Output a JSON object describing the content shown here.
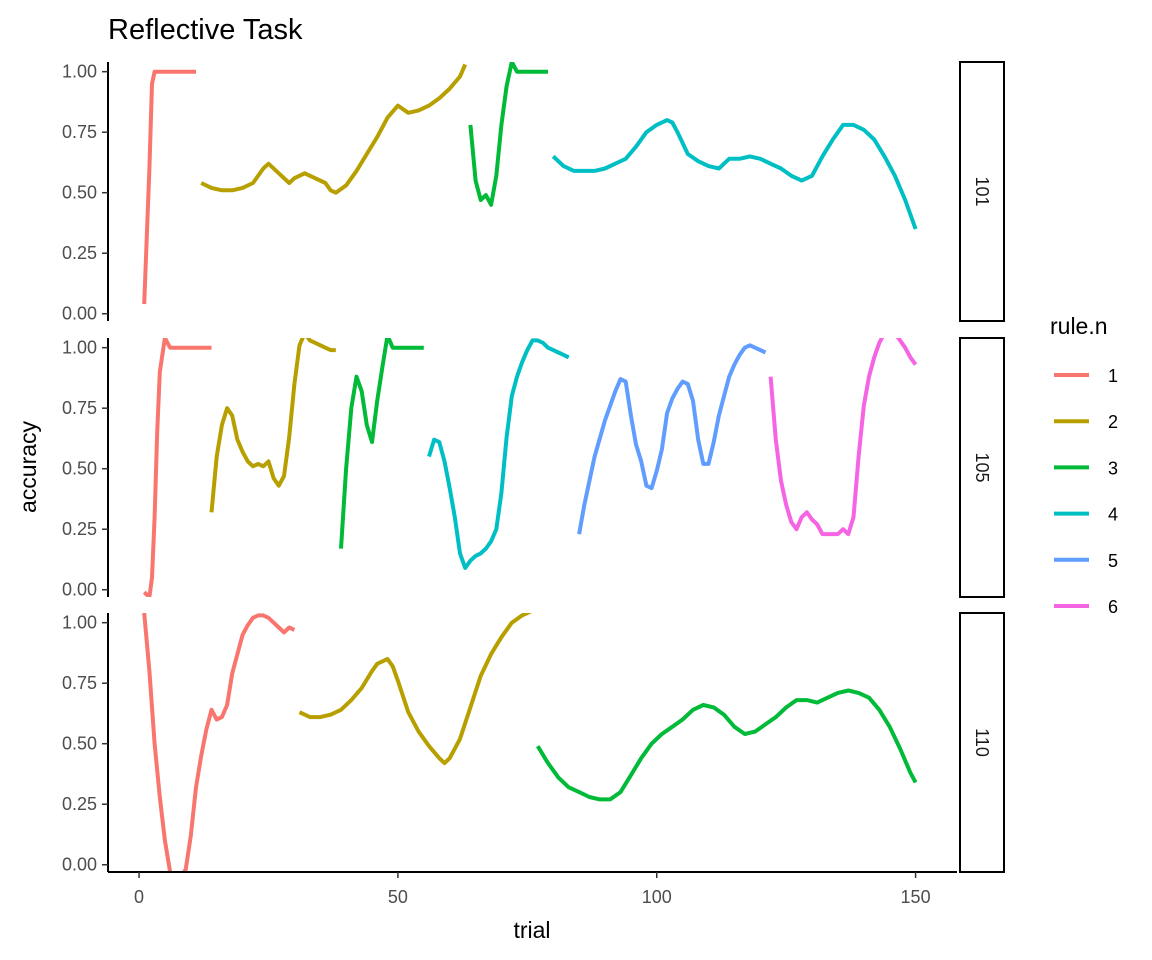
{
  "chart_data": {
    "type": "line",
    "title": "Reflective Task",
    "xlabel": "trial",
    "ylabel": "accuracy",
    "xlim": [
      -6,
      158
    ],
    "ylim": [
      -0.03,
      1.04
    ],
    "x_ticks": [
      0,
      50,
      100,
      150
    ],
    "y_ticks": [
      0,
      0.25,
      0.5,
      0.75,
      1.0
    ],
    "y_tick_labels": [
      "0.00",
      "0.25",
      "0.50",
      "0.75",
      "1.00"
    ],
    "grid": false,
    "legend": {
      "title": "rule.n",
      "position": "right",
      "entries": [
        {
          "label": "1",
          "color": "#F8766D"
        },
        {
          "label": "2",
          "color": "#B79F00"
        },
        {
          "label": "3",
          "color": "#00BA38"
        },
        {
          "label": "4",
          "color": "#00BFC4"
        },
        {
          "label": "5",
          "color": "#619CFF"
        },
        {
          "label": "6",
          "color": "#F564E3"
        }
      ]
    },
    "panels": [
      {
        "label": "101",
        "series": [
          {
            "rule": 1,
            "x": [
              1,
              2,
              2.5,
              3,
              4,
              6,
              8,
              11
            ],
            "y": [
              0.04,
              0.6,
              0.95,
              1.0,
              1.0,
              1.0,
              1.0,
              1.0
            ]
          },
          {
            "rule": 2,
            "x": [
              12,
              14,
              16,
              18,
              20,
              22,
              24,
              25,
              27,
              29,
              30,
              32,
              34,
              36,
              37,
              38,
              40,
              42,
              44,
              46,
              48,
              50,
              52,
              54,
              56,
              58,
              60,
              62,
              63
            ],
            "y": [
              0.54,
              0.52,
              0.51,
              0.51,
              0.52,
              0.54,
              0.6,
              0.62,
              0.58,
              0.54,
              0.56,
              0.58,
              0.56,
              0.54,
              0.51,
              0.5,
              0.53,
              0.59,
              0.66,
              0.73,
              0.81,
              0.86,
              0.83,
              0.84,
              0.86,
              0.89,
              0.93,
              0.98,
              1.03
            ]
          },
          {
            "rule": 3,
            "x": [
              64,
              65,
              66,
              67,
              68,
              69,
              70,
              71,
              72,
              73,
              75,
              78,
              79
            ],
            "y": [
              0.78,
              0.55,
              0.47,
              0.49,
              0.45,
              0.57,
              0.78,
              0.94,
              1.04,
              1.0,
              1.0,
              1.0,
              1.0
            ]
          },
          {
            "rule": 4,
            "x": [
              80,
              82,
              84,
              86,
              88,
              90,
              92,
              94,
              96,
              98,
              100,
              102,
              103,
              104,
              106,
              108,
              110,
              112,
              114,
              116,
              118,
              120,
              122,
              124,
              126,
              128,
              130,
              132,
              134,
              136,
              138,
              140,
              142,
              144,
              146,
              148,
              150
            ],
            "y": [
              0.65,
              0.61,
              0.59,
              0.59,
              0.59,
              0.6,
              0.62,
              0.64,
              0.69,
              0.75,
              0.78,
              0.8,
              0.79,
              0.75,
              0.66,
              0.63,
              0.61,
              0.6,
              0.64,
              0.64,
              0.65,
              0.64,
              0.62,
              0.6,
              0.57,
              0.55,
              0.57,
              0.65,
              0.72,
              0.78,
              0.78,
              0.76,
              0.72,
              0.65,
              0.57,
              0.47,
              0.35
            ]
          }
        ]
      },
      {
        "label": "105",
        "series": [
          {
            "rule": 1,
            "x": [
              1,
              1.5,
              2,
              2.5,
              3,
              3.5,
              4,
              5,
              6,
              7,
              8,
              10,
              12,
              14
            ],
            "y": [
              -0.01,
              -0.02,
              -0.03,
              0.05,
              0.3,
              0.65,
              0.9,
              1.04,
              1.0,
              1.0,
              1.0,
              1.0,
              1.0,
              1.0
            ]
          },
          {
            "rule": 2,
            "x": [
              14,
              15,
              16,
              17,
              18,
              19,
              20,
              21,
              22,
              23,
              24,
              25,
              26,
              27,
              28,
              29,
              30,
              31,
              32,
              33,
              34,
              35,
              36,
              37,
              38
            ],
            "y": [
              0.32,
              0.55,
              0.68,
              0.75,
              0.72,
              0.62,
              0.57,
              0.53,
              0.51,
              0.52,
              0.51,
              0.53,
              0.46,
              0.43,
              0.47,
              0.63,
              0.85,
              1.01,
              1.06,
              1.03,
              1.02,
              1.01,
              1.0,
              0.99,
              0.99
            ]
          },
          {
            "rule": 3,
            "x": [
              39,
              40,
              41,
              42,
              43,
              44,
              45,
              46,
              47,
              48,
              49,
              50,
              52,
              54,
              55
            ],
            "y": [
              0.17,
              0.5,
              0.75,
              0.88,
              0.82,
              0.68,
              0.61,
              0.78,
              0.92,
              1.05,
              1.0,
              1.0,
              1.0,
              1.0,
              1.0
            ]
          },
          {
            "rule": 4,
            "x": [
              56,
              57,
              58,
              59,
              60,
              61,
              62,
              63,
              64,
              65,
              66,
              67,
              68,
              69,
              70,
              71,
              72,
              73,
              74,
              75,
              76,
              77,
              78,
              79,
              80,
              81,
              82,
              83
            ],
            "y": [
              0.55,
              0.62,
              0.61,
              0.53,
              0.42,
              0.3,
              0.15,
              0.09,
              0.12,
              0.14,
              0.15,
              0.17,
              0.2,
              0.25,
              0.4,
              0.63,
              0.8,
              0.88,
              0.94,
              0.99,
              1.03,
              1.03,
              1.02,
              1.0,
              0.99,
              0.98,
              0.97,
              0.96
            ]
          },
          {
            "rule": 5,
            "x": [
              85,
              86,
              88,
              90,
              92,
              93,
              94,
              95,
              96,
              97,
              98,
              99,
              100,
              101,
              102,
              103,
              104,
              105,
              106,
              107,
              108,
              109,
              110,
              111,
              112,
              113,
              114,
              115,
              116,
              117,
              118,
              119,
              120,
              121
            ],
            "y": [
              0.23,
              0.35,
              0.55,
              0.7,
              0.82,
              0.87,
              0.86,
              0.72,
              0.6,
              0.53,
              0.43,
              0.42,
              0.49,
              0.58,
              0.73,
              0.79,
              0.83,
              0.86,
              0.85,
              0.78,
              0.62,
              0.52,
              0.52,
              0.61,
              0.72,
              0.8,
              0.88,
              0.93,
              0.97,
              1.0,
              1.01,
              1.0,
              0.99,
              0.98
            ]
          },
          {
            "rule": 6,
            "x": [
              122,
              123,
              124,
              125,
              126,
              127,
              128,
              129,
              130,
              131,
              132,
              133,
              134,
              135,
              136,
              137,
              138,
              139,
              140,
              141,
              142,
              143,
              144,
              145,
              146,
              147,
              148,
              149,
              150
            ],
            "y": [
              0.88,
              0.62,
              0.45,
              0.35,
              0.28,
              0.25,
              0.3,
              0.32,
              0.29,
              0.27,
              0.23,
              0.23,
              0.23,
              0.23,
              0.25,
              0.23,
              0.3,
              0.55,
              0.76,
              0.88,
              0.96,
              1.02,
              1.06,
              1.07,
              1.06,
              1.03,
              1.0,
              0.96,
              0.93
            ]
          }
        ]
      },
      {
        "label": "110",
        "series": [
          {
            "rule": 1,
            "x": [
              1,
              2,
              3,
              4,
              5,
              6,
              7,
              8,
              9,
              10,
              11,
              12,
              13,
              14,
              15,
              16,
              17,
              18,
              19,
              20,
              21,
              22,
              23,
              24,
              25,
              26,
              27,
              28,
              29,
              30
            ],
            "y": [
              1.04,
              0.8,
              0.5,
              0.28,
              0.1,
              -0.03,
              -0.08,
              -0.05,
              -0.02,
              0.12,
              0.32,
              0.45,
              0.56,
              0.64,
              0.6,
              0.61,
              0.66,
              0.79,
              0.87,
              0.95,
              0.99,
              1.02,
              1.03,
              1.03,
              1.02,
              1.0,
              0.98,
              0.96,
              0.98,
              0.97
            ]
          },
          {
            "rule": 2,
            "x": [
              31,
              33,
              35,
              37,
              39,
              41,
              43,
              45,
              46,
              48,
              49,
              50,
              52,
              54,
              56,
              58,
              59,
              60,
              62,
              64,
              66,
              68,
              70,
              72,
              74,
              76
            ],
            "y": [
              0.63,
              0.61,
              0.61,
              0.62,
              0.64,
              0.68,
              0.73,
              0.8,
              0.83,
              0.85,
              0.82,
              0.76,
              0.63,
              0.55,
              0.49,
              0.44,
              0.42,
              0.44,
              0.52,
              0.65,
              0.78,
              0.87,
              0.94,
              1.0,
              1.03,
              1.05
            ]
          },
          {
            "rule": 3,
            "x": [
              77,
              79,
              81,
              83,
              85,
              87,
              89,
              91,
              93,
              95,
              97,
              99,
              101,
              103,
              105,
              107,
              109,
              111,
              113,
              115,
              117,
              119,
              121,
              123,
              125,
              127,
              129,
              131,
              133,
              135,
              137,
              139,
              141,
              143,
              145,
              147,
              149,
              150
            ],
            "y": [
              0.49,
              0.42,
              0.36,
              0.32,
              0.3,
              0.28,
              0.27,
              0.27,
              0.3,
              0.37,
              0.44,
              0.5,
              0.54,
              0.57,
              0.6,
              0.64,
              0.66,
              0.65,
              0.62,
              0.57,
              0.54,
              0.55,
              0.58,
              0.61,
              0.65,
              0.68,
              0.68,
              0.67,
              0.69,
              0.71,
              0.72,
              0.71,
              0.69,
              0.64,
              0.57,
              0.48,
              0.38,
              0.34
            ]
          }
        ]
      }
    ]
  }
}
